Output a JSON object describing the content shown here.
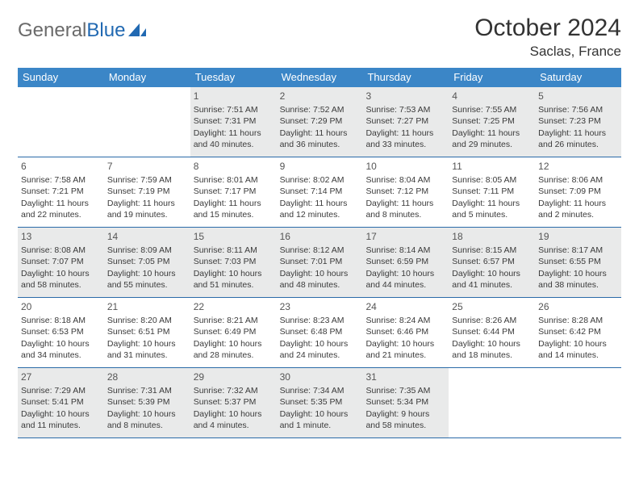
{
  "brand": {
    "word1": "General",
    "word2": "Blue"
  },
  "title": {
    "month": "October 2024",
    "location": "Saclas, France"
  },
  "colors": {
    "header_bg": "#3b86c7",
    "week_border": "#2a6aa8",
    "shade_bg": "#e9eaea",
    "logo_gray": "#6a6a6a",
    "logo_blue": "#2169b2"
  },
  "weekdays": [
    "Sunday",
    "Monday",
    "Tuesday",
    "Wednesday",
    "Thursday",
    "Friday",
    "Saturday"
  ],
  "weeks": [
    [
      {
        "day": "",
        "sunrise": "",
        "sunset": "",
        "daylight": "",
        "shade": false
      },
      {
        "day": "",
        "sunrise": "",
        "sunset": "",
        "daylight": "",
        "shade": false
      },
      {
        "day": "1",
        "sunrise": "Sunrise: 7:51 AM",
        "sunset": "Sunset: 7:31 PM",
        "daylight": "Daylight: 11 hours and 40 minutes.",
        "shade": true
      },
      {
        "day": "2",
        "sunrise": "Sunrise: 7:52 AM",
        "sunset": "Sunset: 7:29 PM",
        "daylight": "Daylight: 11 hours and 36 minutes.",
        "shade": true
      },
      {
        "day": "3",
        "sunrise": "Sunrise: 7:53 AM",
        "sunset": "Sunset: 7:27 PM",
        "daylight": "Daylight: 11 hours and 33 minutes.",
        "shade": true
      },
      {
        "day": "4",
        "sunrise": "Sunrise: 7:55 AM",
        "sunset": "Sunset: 7:25 PM",
        "daylight": "Daylight: 11 hours and 29 minutes.",
        "shade": true
      },
      {
        "day": "5",
        "sunrise": "Sunrise: 7:56 AM",
        "sunset": "Sunset: 7:23 PM",
        "daylight": "Daylight: 11 hours and 26 minutes.",
        "shade": true
      }
    ],
    [
      {
        "day": "6",
        "sunrise": "Sunrise: 7:58 AM",
        "sunset": "Sunset: 7:21 PM",
        "daylight": "Daylight: 11 hours and 22 minutes.",
        "shade": false
      },
      {
        "day": "7",
        "sunrise": "Sunrise: 7:59 AM",
        "sunset": "Sunset: 7:19 PM",
        "daylight": "Daylight: 11 hours and 19 minutes.",
        "shade": false
      },
      {
        "day": "8",
        "sunrise": "Sunrise: 8:01 AM",
        "sunset": "Sunset: 7:17 PM",
        "daylight": "Daylight: 11 hours and 15 minutes.",
        "shade": false
      },
      {
        "day": "9",
        "sunrise": "Sunrise: 8:02 AM",
        "sunset": "Sunset: 7:14 PM",
        "daylight": "Daylight: 11 hours and 12 minutes.",
        "shade": false
      },
      {
        "day": "10",
        "sunrise": "Sunrise: 8:04 AM",
        "sunset": "Sunset: 7:12 PM",
        "daylight": "Daylight: 11 hours and 8 minutes.",
        "shade": false
      },
      {
        "day": "11",
        "sunrise": "Sunrise: 8:05 AM",
        "sunset": "Sunset: 7:11 PM",
        "daylight": "Daylight: 11 hours and 5 minutes.",
        "shade": false
      },
      {
        "day": "12",
        "sunrise": "Sunrise: 8:06 AM",
        "sunset": "Sunset: 7:09 PM",
        "daylight": "Daylight: 11 hours and 2 minutes.",
        "shade": false
      }
    ],
    [
      {
        "day": "13",
        "sunrise": "Sunrise: 8:08 AM",
        "sunset": "Sunset: 7:07 PM",
        "daylight": "Daylight: 10 hours and 58 minutes.",
        "shade": true
      },
      {
        "day": "14",
        "sunrise": "Sunrise: 8:09 AM",
        "sunset": "Sunset: 7:05 PM",
        "daylight": "Daylight: 10 hours and 55 minutes.",
        "shade": true
      },
      {
        "day": "15",
        "sunrise": "Sunrise: 8:11 AM",
        "sunset": "Sunset: 7:03 PM",
        "daylight": "Daylight: 10 hours and 51 minutes.",
        "shade": true
      },
      {
        "day": "16",
        "sunrise": "Sunrise: 8:12 AM",
        "sunset": "Sunset: 7:01 PM",
        "daylight": "Daylight: 10 hours and 48 minutes.",
        "shade": true
      },
      {
        "day": "17",
        "sunrise": "Sunrise: 8:14 AM",
        "sunset": "Sunset: 6:59 PM",
        "daylight": "Daylight: 10 hours and 44 minutes.",
        "shade": true
      },
      {
        "day": "18",
        "sunrise": "Sunrise: 8:15 AM",
        "sunset": "Sunset: 6:57 PM",
        "daylight": "Daylight: 10 hours and 41 minutes.",
        "shade": true
      },
      {
        "day": "19",
        "sunrise": "Sunrise: 8:17 AM",
        "sunset": "Sunset: 6:55 PM",
        "daylight": "Daylight: 10 hours and 38 minutes.",
        "shade": true
      }
    ],
    [
      {
        "day": "20",
        "sunrise": "Sunrise: 8:18 AM",
        "sunset": "Sunset: 6:53 PM",
        "daylight": "Daylight: 10 hours and 34 minutes.",
        "shade": false
      },
      {
        "day": "21",
        "sunrise": "Sunrise: 8:20 AM",
        "sunset": "Sunset: 6:51 PM",
        "daylight": "Daylight: 10 hours and 31 minutes.",
        "shade": false
      },
      {
        "day": "22",
        "sunrise": "Sunrise: 8:21 AM",
        "sunset": "Sunset: 6:49 PM",
        "daylight": "Daylight: 10 hours and 28 minutes.",
        "shade": false
      },
      {
        "day": "23",
        "sunrise": "Sunrise: 8:23 AM",
        "sunset": "Sunset: 6:48 PM",
        "daylight": "Daylight: 10 hours and 24 minutes.",
        "shade": false
      },
      {
        "day": "24",
        "sunrise": "Sunrise: 8:24 AM",
        "sunset": "Sunset: 6:46 PM",
        "daylight": "Daylight: 10 hours and 21 minutes.",
        "shade": false
      },
      {
        "day": "25",
        "sunrise": "Sunrise: 8:26 AM",
        "sunset": "Sunset: 6:44 PM",
        "daylight": "Daylight: 10 hours and 18 minutes.",
        "shade": false
      },
      {
        "day": "26",
        "sunrise": "Sunrise: 8:28 AM",
        "sunset": "Sunset: 6:42 PM",
        "daylight": "Daylight: 10 hours and 14 minutes.",
        "shade": false
      }
    ],
    [
      {
        "day": "27",
        "sunrise": "Sunrise: 7:29 AM",
        "sunset": "Sunset: 5:41 PM",
        "daylight": "Daylight: 10 hours and 11 minutes.",
        "shade": true
      },
      {
        "day": "28",
        "sunrise": "Sunrise: 7:31 AM",
        "sunset": "Sunset: 5:39 PM",
        "daylight": "Daylight: 10 hours and 8 minutes.",
        "shade": true
      },
      {
        "day": "29",
        "sunrise": "Sunrise: 7:32 AM",
        "sunset": "Sunset: 5:37 PM",
        "daylight": "Daylight: 10 hours and 4 minutes.",
        "shade": true
      },
      {
        "day": "30",
        "sunrise": "Sunrise: 7:34 AM",
        "sunset": "Sunset: 5:35 PM",
        "daylight": "Daylight: 10 hours and 1 minute.",
        "shade": true
      },
      {
        "day": "31",
        "sunrise": "Sunrise: 7:35 AM",
        "sunset": "Sunset: 5:34 PM",
        "daylight": "Daylight: 9 hours and 58 minutes.",
        "shade": true
      },
      {
        "day": "",
        "sunrise": "",
        "sunset": "",
        "daylight": "",
        "shade": false
      },
      {
        "day": "",
        "sunrise": "",
        "sunset": "",
        "daylight": "",
        "shade": false
      }
    ]
  ]
}
